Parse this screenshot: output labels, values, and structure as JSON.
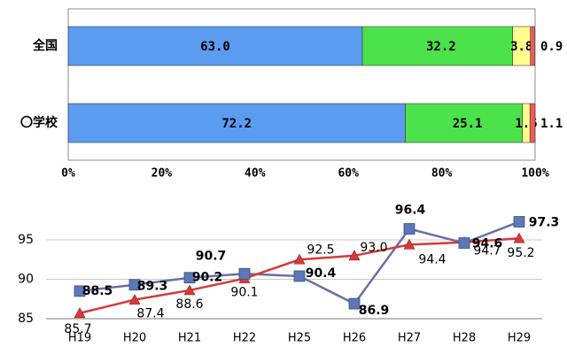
{
  "chart_data": [
    {
      "type": "bar",
      "orientation": "horizontal",
      "stacked": "percent",
      "categories": [
        "全国",
        "〇学校"
      ],
      "series": [
        {
          "values": [
            63.0,
            72.2
          ],
          "labels": [
            "63.0",
            "72.2"
          ],
          "color": "#5b9bf0"
        },
        {
          "values": [
            32.2,
            25.1
          ],
          "labels": [
            "32.2",
            "25.1"
          ],
          "color": "#4ce24c"
        },
        {
          "values": [
            3.8,
            1.6
          ],
          "labels": [
            "3.8",
            "1.6"
          ],
          "color": "#fffd8c"
        },
        {
          "values": [
            0.9,
            1.1
          ],
          "labels": [
            "0.9",
            "1.1"
          ],
          "color": "#ee5a5a"
        }
      ],
      "xticks": [
        "0%",
        "20%",
        "40%",
        "60%",
        "80%",
        "100%"
      ],
      "xlim": [
        0,
        100
      ],
      "grid": false,
      "legend": "none"
    },
    {
      "type": "line",
      "categories": [
        "H19",
        "H20",
        "H21",
        "H22",
        "H25",
        "H26",
        "H27",
        "H28",
        "H29"
      ],
      "series": [
        {
          "values": [
            88.5,
            89.3,
            90.2,
            90.7,
            90.4,
            86.9,
            96.4,
            94.6,
            97.3
          ],
          "labels": [
            "88.5",
            "89.3",
            "90.2",
            "90.7",
            "90.4",
            "86.9",
            "96.4",
            "94.6",
            "97.3"
          ],
          "color": "#6a6ea8",
          "marker": "square"
        },
        {
          "values": [
            85.7,
            87.4,
            88.6,
            90.1,
            92.5,
            93.0,
            94.4,
            94.7,
            95.2
          ],
          "labels": [
            "85.7",
            "87.4",
            "88.6",
            "90.1",
            "92.5",
            "93.0",
            "94.4",
            "94.7",
            "95.2"
          ],
          "color": "#d43a3a",
          "marker": "triangle"
        }
      ],
      "yticks": [
        "85",
        "90",
        "95"
      ],
      "ylim": [
        85,
        97.6
      ],
      "grid": true,
      "legend": "none"
    }
  ]
}
